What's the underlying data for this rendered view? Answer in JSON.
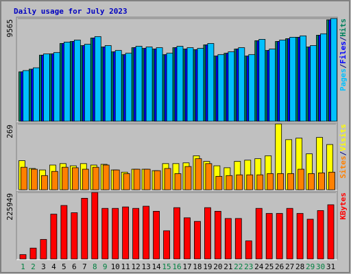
{
  "chart_data": [
    {
      "type": "bar",
      "title": "Daily usage for July 2023",
      "categories": [
        "1",
        "2",
        "3",
        "4",
        "5",
        "6",
        "7",
        "8",
        "9",
        "10",
        "11",
        "12",
        "13",
        "14",
        "15",
        "16",
        "17",
        "18",
        "19",
        "20",
        "21",
        "22",
        "23",
        "24",
        "25",
        "26",
        "27",
        "28",
        "29",
        "30",
        "31"
      ],
      "category_colors": [
        "#008040",
        "#008040",
        "#000000",
        "#000000",
        "#000000",
        "#000000",
        "#000000",
        "#008040",
        "#008040",
        "#000000",
        "#000000",
        "#000000",
        "#000000",
        "#000000",
        "#008040",
        "#008040",
        "#000000",
        "#000000",
        "#000000",
        "#000000",
        "#000000",
        "#008040",
        "#008040",
        "#000000",
        "#000000",
        "#000000",
        "#000000",
        "#000000",
        "#008040",
        "#008040",
        "#000000"
      ],
      "legend_separator": "/",
      "ylim": [
        0,
        9565
      ],
      "yticks": [
        9565
      ],
      "series": [
        {
          "name": "Hits",
          "color": "#00805c",
          "values": [
            4600,
            4850,
            6150,
            6270,
            7240,
            7430,
            7040,
            7750,
            6910,
            6460,
            6200,
            6850,
            6780,
            6720,
            6200,
            6850,
            6720,
            6660,
            7110,
            6070,
            6330,
            6720,
            6070,
            7500,
            6590,
            7430,
            7690,
            7820,
            6910,
            8010,
            9440
          ]
        },
        {
          "name": "Files",
          "color": "#0000ff",
          "values": [
            4600,
            4850,
            6150,
            6270,
            7240,
            7430,
            7040,
            7750,
            6910,
            6460,
            6200,
            6850,
            6780,
            6720,
            6200,
            6850,
            6720,
            6660,
            7110,
            6070,
            6330,
            6720,
            6070,
            7500,
            6590,
            7430,
            7690,
            7820,
            6910,
            8010,
            9440
          ]
        },
        {
          "name": "Pages",
          "color": "#00c0ff",
          "values": [
            4718,
            4975,
            6268,
            6397,
            7368,
            7561,
            7173,
            7884,
            7044,
            6592,
            6333,
            6980,
            6915,
            6850,
            6333,
            6980,
            6850,
            6786,
            7238,
            6204,
            6463,
            6850,
            6204,
            7626,
            6721,
            7561,
            7820,
            7949,
            7044,
            8143,
            9565
          ]
        }
      ]
    },
    {
      "type": "bar",
      "legend_separator": "/",
      "ylim": [
        0,
        269
      ],
      "yticks": [
        269
      ],
      "series": [
        {
          "name": "Visits",
          "color": "#ffff00",
          "values": [
            119,
            87,
            81,
            101,
            107,
            98,
            107,
            101,
            104,
            81,
            72,
            84,
            84,
            78,
            107,
            107,
            110,
            139,
            116,
            98,
            90,
            116,
            121,
            127,
            139,
            269,
            205,
            211,
            147,
            214,
            185
          ]
        },
        {
          "name": "Sites",
          "color": "#ff8000",
          "values": [
            92,
            84,
            58,
            75,
            92,
            90,
            84,
            92,
            101,
            81,
            66,
            84,
            84,
            78,
            87,
            66,
            95,
            127,
            107,
            55,
            58,
            61,
            61,
            61,
            66,
            66,
            66,
            84,
            66,
            69,
            72
          ]
        }
      ]
    },
    {
      "type": "bar",
      "legend_separator": "/",
      "ylim": [
        0,
        225949
      ],
      "yticks": [
        225949
      ],
      "series": [
        {
          "name": "KBytes",
          "color": "#ff0000",
          "values": [
            14737,
            36841,
            66314,
            152278,
            181754,
            157190,
            206314,
            225949,
            171926,
            171926,
            176838,
            171926,
            179294,
            162102,
            95789,
            174382,
            139997,
            127717,
            174382,
            162102,
            137541,
            137541,
            61403,
            171926,
            154734,
            154734,
            171926,
            154734,
            135085,
            164558,
            184210
          ]
        }
      ]
    }
  ]
}
